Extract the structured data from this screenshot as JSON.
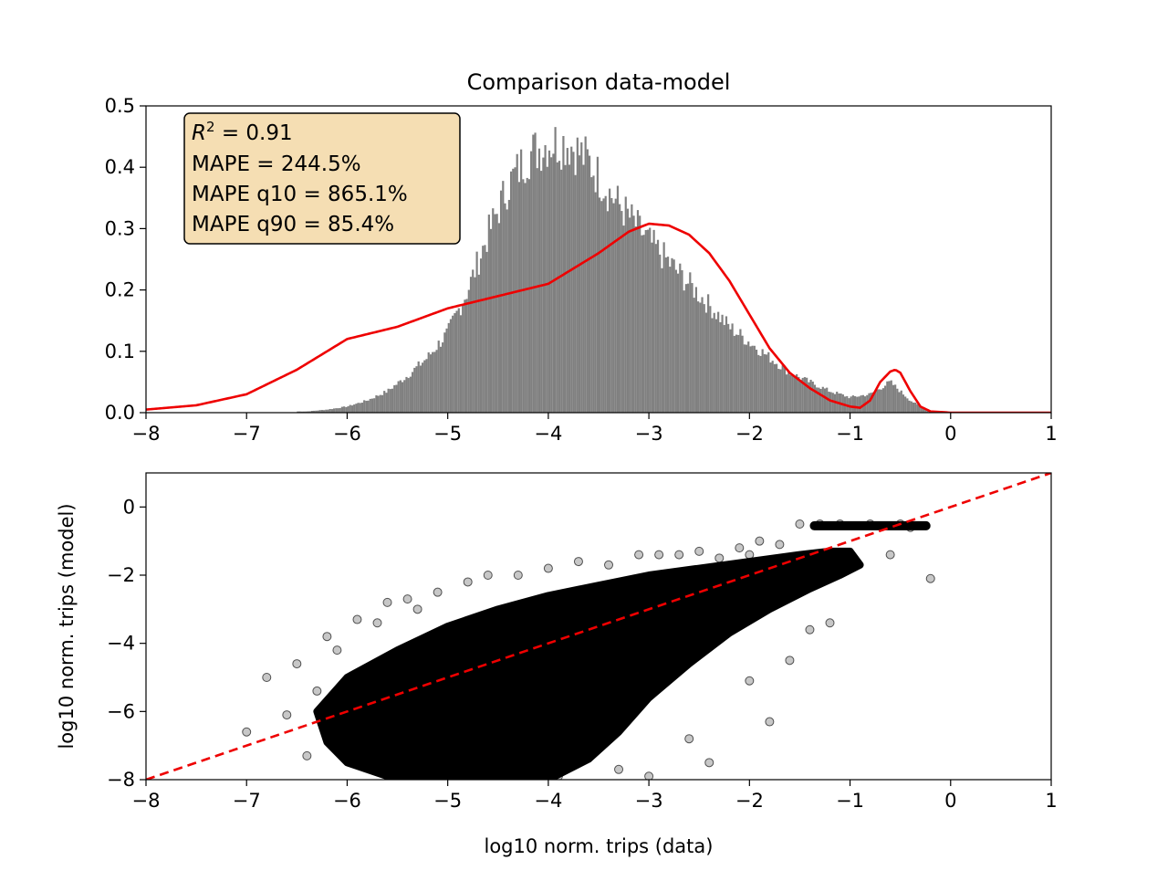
{
  "title": "Comparison data-model",
  "colors": {
    "histogram": "#808080",
    "model_curve": "#ee0000",
    "identity_line": "#ee0000",
    "scatter": "#000000",
    "stats_box_fill": "#f5deb3"
  },
  "stats_box": {
    "r2_symbol": "R",
    "r2_sup": "2",
    "r2_rest": " =  0.91",
    "mape": "MAPE = 244.5%",
    "mape_q10": "MAPE q10 = 865.1%",
    "mape_q90": "MAPE q90 = 85.4%"
  },
  "chart_data": [
    {
      "type": "bar",
      "subtype": "histogram-with-density-curve",
      "xlim": [
        -8,
        1
      ],
      "ylim": [
        0,
        0.5
      ],
      "xticks": [
        -8,
        -7,
        -6,
        -5,
        -4,
        -3,
        -2,
        -1,
        0,
        1
      ],
      "xtick_labels": [
        "−8",
        "−7",
        "−6",
        "−5",
        "−4",
        "−3",
        "−2",
        "−1",
        "0",
        "1"
      ],
      "yticks": [
        0.0,
        0.1,
        0.2,
        0.3,
        0.4,
        0.5
      ],
      "ytick_labels": [
        "0.0",
        "0.1",
        "0.2",
        "0.3",
        "0.4",
        "0.5"
      ],
      "histogram": {
        "x": [
          -6.4,
          -6.2,
          -6.0,
          -5.8,
          -5.6,
          -5.4,
          -5.2,
          -5.0,
          -4.8,
          -4.6,
          -4.4,
          -4.2,
          -4.0,
          -3.8,
          -3.6,
          -3.4,
          -3.2,
          -3.0,
          -2.8,
          -2.6,
          -2.4,
          -2.2,
          -2.0,
          -1.8,
          -1.6,
          -1.4,
          -1.2,
          -1.0,
          -0.8,
          -0.6,
          -0.4,
          -0.2
        ],
        "y": [
          0.002,
          0.005,
          0.01,
          0.02,
          0.035,
          0.06,
          0.09,
          0.13,
          0.2,
          0.29,
          0.37,
          0.42,
          0.44,
          0.44,
          0.41,
          0.36,
          0.32,
          0.28,
          0.245,
          0.21,
          0.175,
          0.14,
          0.115,
          0.09,
          0.065,
          0.05,
          0.035,
          0.025,
          0.03,
          0.05,
          0.02,
          0.0
        ]
      },
      "model_curve": {
        "x": [
          -8,
          -7.5,
          -7.0,
          -6.5,
          -6.0,
          -5.5,
          -5.0,
          -4.5,
          -4.0,
          -3.5,
          -3.2,
          -3.0,
          -2.8,
          -2.6,
          -2.4,
          -2.2,
          -2.0,
          -1.8,
          -1.6,
          -1.4,
          -1.2,
          -1.0,
          -0.9,
          -0.8,
          -0.7,
          -0.6,
          -0.55,
          -0.5,
          -0.4,
          -0.3,
          -0.2,
          0.0,
          0.5,
          1.0
        ],
        "y": [
          0.005,
          0.012,
          0.03,
          0.07,
          0.12,
          0.14,
          0.17,
          0.19,
          0.21,
          0.26,
          0.295,
          0.308,
          0.305,
          0.29,
          0.26,
          0.215,
          0.16,
          0.105,
          0.065,
          0.04,
          0.02,
          0.01,
          0.008,
          0.02,
          0.05,
          0.067,
          0.07,
          0.065,
          0.035,
          0.01,
          0.002,
          0.0,
          0.0,
          0.0
        ]
      }
    },
    {
      "type": "scatter",
      "xlabel": "log10 norm. trips (data)",
      "ylabel": "log10 norm. trips (model)",
      "xlim": [
        -8,
        1
      ],
      "ylim": [
        -8,
        1
      ],
      "xticks": [
        -8,
        -7,
        -6,
        -5,
        -4,
        -3,
        -2,
        -1,
        0,
        1
      ],
      "xtick_labels": [
        "−8",
        "−7",
        "−6",
        "−5",
        "−4",
        "−3",
        "−2",
        "−1",
        "0",
        "1"
      ],
      "yticks": [
        -8,
        -6,
        -4,
        -2,
        0
      ],
      "ytick_labels": [
        "−8",
        "−6",
        "−4",
        "−2",
        "0"
      ],
      "identity_line": {
        "x": [
          -8,
          1
        ],
        "y": [
          -8,
          1
        ]
      },
      "dense_region": {
        "x": [
          -6.3,
          -6.0,
          -5.5,
          -5.0,
          -4.5,
          -4.0,
          -3.5,
          -3.0,
          -2.5,
          -2.0,
          -1.5,
          -1.2,
          -1.0,
          -0.9,
          -1.1,
          -1.4,
          -1.8,
          -2.2,
          -2.6,
          -3.0,
          -3.3,
          -3.6,
          -4.0,
          -4.5,
          -5.0,
          -5.5,
          -6.0,
          -6.2
        ],
        "y": [
          -6.0,
          -5.0,
          -4.2,
          -3.5,
          -3.0,
          -2.6,
          -2.3,
          -2.0,
          -1.8,
          -1.6,
          -1.4,
          -1.3,
          -1.3,
          -1.7,
          -2.0,
          -2.4,
          -3.0,
          -3.7,
          -4.6,
          -5.6,
          -6.6,
          -7.4,
          -8.0,
          -8.0,
          -8.0,
          -8.0,
          -7.5,
          -6.9
        ]
      },
      "points": {
        "x": [
          -7.0,
          -6.8,
          -6.6,
          -6.5,
          -6.3,
          -6.2,
          -6.4,
          -6.1,
          -5.9,
          -5.7,
          -5.6,
          -5.4,
          -5.3,
          -5.1,
          -4.8,
          -4.6,
          -4.3,
          -4.0,
          -3.7,
          -3.4,
          -3.1,
          -2.9,
          -2.7,
          -2.5,
          -2.3,
          -2.1,
          -2.0,
          -1.9,
          -1.7,
          -1.5,
          -1.3,
          -1.1,
          -0.8,
          -0.5,
          -0.4,
          -0.6,
          -1.4,
          -2.6,
          -3.3,
          -3.9,
          -4.4,
          -5.0,
          -5.5,
          -2.0,
          -1.6,
          -1.2,
          -0.2,
          -1.8,
          -2.4,
          -3.0
        ],
        "y": [
          -6.6,
          -5.0,
          -6.1,
          -4.6,
          -5.4,
          -3.8,
          -7.3,
          -4.2,
          -3.3,
          -3.4,
          -2.8,
          -2.7,
          -3.0,
          -2.5,
          -2.2,
          -2.0,
          -2.0,
          -1.8,
          -1.6,
          -1.7,
          -1.4,
          -1.4,
          -1.4,
          -1.3,
          -1.5,
          -1.2,
          -1.4,
          -1.0,
          -1.1,
          -0.5,
          -0.5,
          -0.5,
          -0.5,
          -0.5,
          -0.6,
          -1.4,
          -3.6,
          -6.8,
          -7.7,
          -7.9,
          -7.9,
          -7.9,
          -7.6,
          -5.1,
          -4.5,
          -3.4,
          -2.1,
          -6.3,
          -7.5,
          -7.9
        ]
      },
      "plateau": {
        "x0": -1.4,
        "x1": -0.2,
        "y": -0.55
      }
    }
  ]
}
